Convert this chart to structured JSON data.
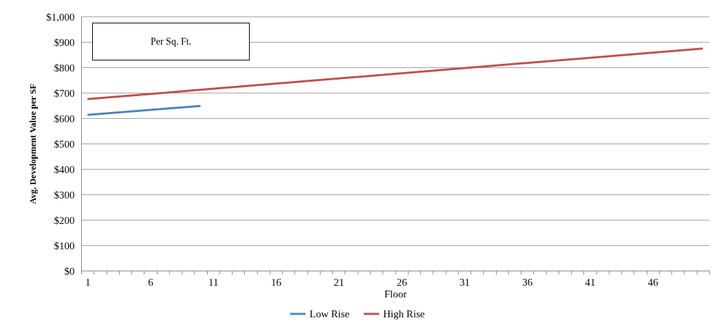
{
  "chart_data": {
    "type": "line",
    "xlabel": "Floor",
    "ylabel": "Avg. Development Value per SF",
    "annotations": [
      "Per Sq. Ft."
    ],
    "series": [
      {
        "name": "Low Rise",
        "color": "#4f81bd",
        "x": [
          1,
          10
        ],
        "values": [
          613,
          648
        ]
      },
      {
        "name": "High Rise",
        "color": "#c0504d",
        "x": [
          1,
          50
        ],
        "values": [
          675,
          874
        ]
      }
    ],
    "xlim": [
      0.5,
      50.5
    ],
    "xticks": [
      {
        "value": 1,
        "label": "1"
      },
      {
        "value": 6,
        "label": "6"
      },
      {
        "value": 11,
        "label": "11"
      },
      {
        "value": 16,
        "label": "16"
      },
      {
        "value": 21,
        "label": "21"
      },
      {
        "value": 26,
        "label": "26"
      },
      {
        "value": 31,
        "label": "31"
      },
      {
        "value": 36,
        "label": "36"
      },
      {
        "value": 41,
        "label": "41"
      },
      {
        "value": 46,
        "label": "46"
      }
    ],
    "ylim": [
      0,
      1000
    ],
    "yticks": [
      {
        "value": 0,
        "label": "$0"
      },
      {
        "value": 100,
        "label": "$100"
      },
      {
        "value": 200,
        "label": "$200"
      },
      {
        "value": 300,
        "label": "$300"
      },
      {
        "value": 400,
        "label": "$400"
      },
      {
        "value": 500,
        "label": "$500"
      },
      {
        "value": 600,
        "label": "$600"
      },
      {
        "value": 700,
        "label": "$700"
      },
      {
        "value": 800,
        "label": "$800"
      },
      {
        "value": 900,
        "label": "$900"
      },
      {
        "value": 1000,
        "label": "$1,000"
      }
    ],
    "grid": "y",
    "legend": "bottom",
    "marker": "none",
    "line_style": "solid"
  }
}
